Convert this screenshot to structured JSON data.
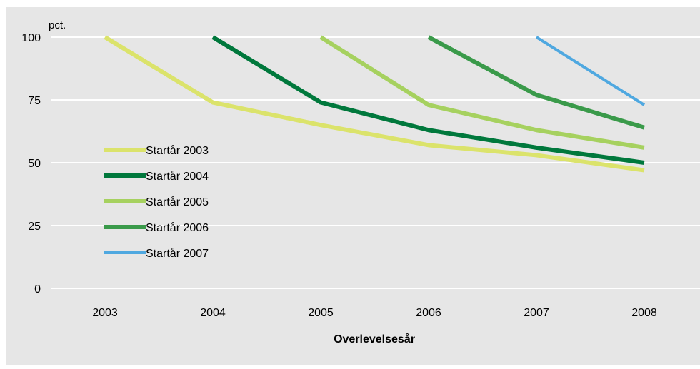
{
  "chart_data": {
    "type": "line",
    "title": "",
    "ylabel": "pct.",
    "xlabel": "Overlevelsesår",
    "x": [
      2003,
      2004,
      2005,
      2006,
      2007,
      2008
    ],
    "ylim": [
      0,
      100
    ],
    "yticks": [
      0,
      25,
      50,
      75,
      100
    ],
    "grid": true,
    "legend_position": "left",
    "series": [
      {
        "name": "Startår 2003",
        "color": "#dbe36b",
        "values": [
          100,
          74,
          65,
          57,
          53,
          47
        ]
      },
      {
        "name": "Startår 2004",
        "color": "#00783c",
        "values": [
          null,
          100,
          74,
          63,
          56,
          50
        ]
      },
      {
        "name": "Startår 2005",
        "color": "#a6d15f",
        "values": [
          null,
          null,
          100,
          73,
          63,
          56
        ]
      },
      {
        "name": "Startår 2006",
        "color": "#3a9a4a",
        "values": [
          null,
          null,
          null,
          100,
          77,
          64
        ]
      },
      {
        "name": "Startår 2007",
        "color": "#4fa8e0",
        "values": [
          null,
          null,
          null,
          null,
          100,
          73
        ]
      }
    ]
  }
}
